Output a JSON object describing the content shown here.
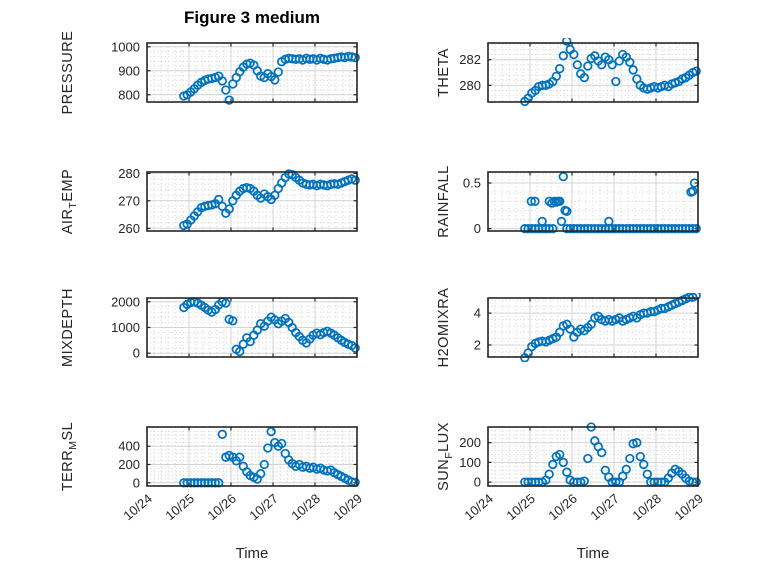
{
  "figure": {
    "title": "Figure 3 medium",
    "xlabel": "Time",
    "x_tick_labels": [
      "10/24",
      "10/25",
      "10/26",
      "10/27",
      "10/28",
      "10/29"
    ],
    "xlim_days": [
      0,
      5
    ],
    "colors": {
      "marker": "#0072BD",
      "axes": "#262626",
      "grid": "#d4d4d4",
      "minor_grid": "#d0d0d0",
      "text": "#262626",
      "title": "#000000"
    }
  },
  "chart_data": [
    {
      "id": "pressure",
      "type": "scatter",
      "row": 0,
      "col": 0,
      "ylabel_segments": [
        {
          "text": "PRESSURE",
          "sub": false
        }
      ],
      "yticks": [
        800,
        900,
        1000
      ],
      "ylim": [
        770,
        1016
      ],
      "t": [
        0.875,
        0.958,
        1.042,
        1.125,
        1.208,
        1.292,
        1.375,
        1.458,
        1.542,
        1.625,
        1.708,
        1.792,
        1.875,
        1.958,
        2.042,
        2.125,
        2.208,
        2.292,
        2.375,
        2.458,
        2.542,
        2.625,
        2.708,
        2.792,
        2.875,
        2.958,
        3.042,
        3.125,
        3.208,
        3.292,
        3.375,
        3.458,
        3.542,
        3.625,
        3.708,
        3.792,
        3.875,
        3.958,
        4.042,
        4.125,
        4.208,
        4.292,
        4.375,
        4.458,
        4.542,
        4.625,
        4.708,
        4.792,
        4.875,
        4.958
      ],
      "y": [
        795,
        800,
        812,
        825,
        840,
        852,
        860,
        866,
        868,
        872,
        878,
        858,
        820,
        778,
        845,
        872,
        896,
        915,
        928,
        932,
        924,
        900,
        878,
        872,
        888,
        876,
        862,
        895,
        938,
        948,
        952,
        950,
        948,
        950,
        945,
        952,
        948,
        950,
        945,
        952,
        948,
        945,
        950,
        952,
        955,
        958,
        955,
        960,
        958,
        955
      ]
    },
    {
      "id": "theta",
      "type": "scatter",
      "row": 0,
      "col": 1,
      "ylabel_segments": [
        {
          "text": "THETA",
          "sub": false
        }
      ],
      "yticks": [
        280,
        282
      ],
      "ylim": [
        278.7,
        283.3
      ],
      "t": [
        0.875,
        0.958,
        1.042,
        1.125,
        1.208,
        1.292,
        1.375,
        1.458,
        1.542,
        1.625,
        1.708,
        1.792,
        1.875,
        1.958,
        2.042,
        2.125,
        2.208,
        2.292,
        2.375,
        2.458,
        2.542,
        2.625,
        2.708,
        2.792,
        2.875,
        2.958,
        3.042,
        3.125,
        3.208,
        3.292,
        3.375,
        3.458,
        3.542,
        3.625,
        3.708,
        3.792,
        3.875,
        3.958,
        4.042,
        4.125,
        4.208,
        4.292,
        4.375,
        4.458,
        4.542,
        4.625,
        4.708,
        4.792,
        4.875,
        4.958
      ],
      "y": [
        278.75,
        279.0,
        279.4,
        279.6,
        279.9,
        280.0,
        280.0,
        280.1,
        280.3,
        280.7,
        281.3,
        282.3,
        283.45,
        282.8,
        282.4,
        281.6,
        280.9,
        280.6,
        281.5,
        282.1,
        282.3,
        281.9,
        281.6,
        282.2,
        282.0,
        281.6,
        280.3,
        281.9,
        282.4,
        282.2,
        281.8,
        281.2,
        280.5,
        280.0,
        279.8,
        279.7,
        279.8,
        279.9,
        279.8,
        279.9,
        280.0,
        279.9,
        280.1,
        280.2,
        280.3,
        280.5,
        280.6,
        280.8,
        281.0,
        281.1
      ]
    },
    {
      "id": "air-temp",
      "type": "scatter",
      "row": 1,
      "col": 0,
      "ylabel_segments": [
        {
          "text": "AIR",
          "sub": false
        },
        {
          "text": "T",
          "sub": true
        },
        {
          "text": "EMP",
          "sub": false
        }
      ],
      "yticks": [
        260,
        270,
        280
      ],
      "ylim": [
        259,
        280.5
      ],
      "t": [
        0.875,
        0.958,
        1.042,
        1.125,
        1.208,
        1.292,
        1.375,
        1.458,
        1.542,
        1.625,
        1.708,
        1.792,
        1.875,
        1.958,
        2.042,
        2.125,
        2.208,
        2.292,
        2.375,
        2.458,
        2.542,
        2.625,
        2.708,
        2.792,
        2.875,
        2.958,
        3.042,
        3.125,
        3.208,
        3.292,
        3.375,
        3.458,
        3.542,
        3.625,
        3.708,
        3.792,
        3.875,
        3.958,
        4.042,
        4.125,
        4.208,
        4.292,
        4.375,
        4.458,
        4.542,
        4.625,
        4.708,
        4.792,
        4.875,
        4.958
      ],
      "y": [
        261.0,
        261.5,
        263.0,
        264.5,
        266.0,
        267.5,
        268.0,
        268.3,
        268.5,
        269.0,
        270.5,
        268.0,
        265.5,
        267.0,
        270.0,
        272.0,
        273.5,
        274.5,
        274.8,
        274.5,
        273.5,
        272.0,
        271.0,
        272.5,
        271.5,
        270.5,
        272.0,
        274.5,
        276.5,
        278.5,
        279.8,
        279.5,
        278.5,
        277.5,
        276.5,
        276.0,
        275.8,
        276.0,
        275.5,
        276.0,
        275.8,
        275.5,
        276.0,
        276.2,
        276.0,
        276.5,
        277.0,
        277.5,
        278.0,
        277.5
      ]
    },
    {
      "id": "rainfall",
      "type": "scatter",
      "row": 1,
      "col": 1,
      "ylabel_segments": [
        {
          "text": "RAINFALL",
          "sub": false
        }
      ],
      "yticks": [
        0,
        0.5
      ],
      "ylim": [
        -0.025,
        0.62
      ],
      "t": [
        0.875,
        0.958,
        1.042,
        1.125,
        1.208,
        1.292,
        1.375,
        1.458,
        1.542,
        1.03,
        1.12,
        1.29,
        1.46,
        1.521,
        1.583,
        1.625,
        1.667,
        1.708,
        1.75,
        1.792,
        1.833,
        1.875,
        2.875,
        4.833,
        4.875,
        4.917,
        1.875,
        1.958,
        2.042,
        2.125,
        2.208,
        2.292,
        2.375,
        2.458,
        2.542,
        2.625,
        2.708,
        2.792,
        2.875,
        2.958,
        3.042,
        3.125,
        3.208,
        3.292,
        3.375,
        3.458,
        3.542,
        3.625,
        3.708,
        3.792,
        3.875,
        3.958,
        4.042,
        4.125,
        4.208,
        4.292,
        4.375,
        4.458,
        4.542,
        4.625,
        4.708,
        4.792,
        4.875,
        4.958
      ],
      "y": [
        0,
        0,
        0,
        0,
        0,
        0,
        0,
        0,
        0,
        0.3,
        0.3,
        0.08,
        0.3,
        0.28,
        0.3,
        0.29,
        0.3,
        0.3,
        0.08,
        0.57,
        0.2,
        0.19,
        0.08,
        0.4,
        0.41,
        0.5,
        0,
        0,
        0,
        0,
        0,
        0,
        0,
        0,
        0,
        0,
        0,
        0,
        0,
        0,
        0,
        0,
        0,
        0,
        0,
        0,
        0,
        0,
        0,
        0,
        0,
        0,
        0,
        0,
        0,
        0,
        0,
        0,
        0,
        0,
        0,
        0,
        0,
        0
      ]
    },
    {
      "id": "mixdepth",
      "type": "scatter",
      "row": 2,
      "col": 0,
      "ylabel_segments": [
        {
          "text": "MIXDEPTH",
          "sub": false
        }
      ],
      "yticks": [
        0,
        1000,
        2000
      ],
      "ylim": [
        -150,
        2150
      ],
      "t": [
        0.875,
        0.958,
        1.042,
        1.125,
        1.208,
        1.292,
        1.375,
        1.458,
        1.542,
        1.625,
        1.708,
        1.792,
        1.875,
        1.958,
        2.042,
        2.125,
        2.208,
        2.292,
        2.375,
        2.458,
        2.542,
        2.625,
        2.708,
        2.792,
        2.875,
        2.958,
        3.042,
        3.125,
        3.208,
        3.292,
        3.375,
        3.458,
        3.542,
        3.625,
        3.708,
        3.792,
        3.875,
        3.958,
        4.042,
        4.125,
        4.208,
        4.292,
        4.375,
        4.458,
        4.542,
        4.625,
        4.708,
        4.792,
        4.875,
        4.958
      ],
      "y": [
        1780,
        1900,
        1980,
        2000,
        1950,
        1870,
        1780,
        1680,
        1600,
        1700,
        1880,
        2000,
        1950,
        1320,
        1260,
        150,
        60,
        350,
        600,
        450,
        700,
        900,
        1150,
        1050,
        1250,
        1400,
        1300,
        1150,
        1250,
        1350,
        1200,
        1000,
        800,
        650,
        500,
        400,
        550,
        700,
        780,
        720,
        800,
        850,
        780,
        700,
        600,
        500,
        420,
        350,
        300,
        200
      ]
    },
    {
      "id": "h2omixra",
      "type": "scatter",
      "row": 2,
      "col": 1,
      "ylabel_segments": [
        {
          "text": "H2OMIXRA",
          "sub": false
        }
      ],
      "yticks": [
        2,
        4
      ],
      "ylim": [
        1.25,
        4.95
      ],
      "t": [
        0.875,
        0.958,
        1.042,
        1.125,
        1.208,
        1.292,
        1.375,
        1.458,
        1.542,
        1.625,
        1.708,
        1.792,
        1.875,
        1.958,
        2.042,
        2.125,
        2.208,
        2.292,
        2.375,
        2.458,
        2.542,
        2.625,
        2.708,
        2.792,
        2.875,
        2.958,
        3.042,
        3.125,
        3.208,
        3.292,
        3.375,
        3.458,
        3.542,
        3.625,
        3.708,
        3.792,
        3.875,
        3.958,
        4.042,
        4.125,
        4.208,
        4.292,
        4.375,
        4.458,
        4.542,
        4.625,
        4.708,
        4.792,
        4.875,
        4.958
      ],
      "y": [
        1.2,
        1.5,
        1.9,
        2.1,
        2.2,
        2.25,
        2.2,
        2.3,
        2.4,
        2.5,
        2.8,
        3.2,
        3.3,
        3.0,
        2.5,
        2.8,
        3.0,
        2.9,
        3.1,
        3.3,
        3.7,
        3.8,
        3.6,
        3.5,
        3.6,
        3.5,
        3.6,
        3.7,
        3.5,
        3.6,
        3.7,
        3.8,
        3.7,
        3.9,
        4.0,
        4.0,
        4.1,
        4.1,
        4.2,
        4.3,
        4.3,
        4.4,
        4.5,
        4.6,
        4.7,
        4.8,
        4.9,
        5.0,
        5.0,
        5.1
      ]
    },
    {
      "id": "terr-msl",
      "type": "scatter",
      "row": 3,
      "col": 0,
      "ylabel_segments": [
        {
          "text": "TERR",
          "sub": false
        },
        {
          "text": "M",
          "sub": true
        },
        {
          "text": "SL",
          "sub": false
        }
      ],
      "yticks": [
        0,
        200,
        400
      ],
      "ylim": [
        -35,
        610
      ],
      "t": [
        0.875,
        0.958,
        1.042,
        1.125,
        1.208,
        1.292,
        1.375,
        1.458,
        1.542,
        1.625,
        1.708,
        1.792,
        1.875,
        1.958,
        2.042,
        2.125,
        2.208,
        2.292,
        2.375,
        2.458,
        2.542,
        2.625,
        2.708,
        2.792,
        2.875,
        2.958,
        3.042,
        3.125,
        3.208,
        3.292,
        3.375,
        3.458,
        3.542,
        3.625,
        3.708,
        3.792,
        3.875,
        3.958,
        4.042,
        4.125,
        4.208,
        4.292,
        4.375,
        4.458,
        4.542,
        4.625,
        4.708,
        4.792,
        4.875,
        4.958
      ],
      "y": [
        0,
        0,
        0,
        0,
        0,
        0,
        0,
        0,
        0,
        0,
        0,
        530,
        280,
        300,
        280,
        240,
        280,
        180,
        120,
        80,
        60,
        40,
        100,
        200,
        380,
        560,
        440,
        400,
        430,
        320,
        250,
        210,
        180,
        200,
        170,
        180,
        160,
        170,
        150,
        160,
        140,
        130,
        140,
        110,
        90,
        70,
        50,
        30,
        10,
        5
      ]
    },
    {
      "id": "sun-flux",
      "type": "scatter",
      "row": 3,
      "col": 1,
      "ylabel_segments": [
        {
          "text": "SUN",
          "sub": false
        },
        {
          "text": "F",
          "sub": true
        },
        {
          "text": "LUX",
          "sub": false
        }
      ],
      "yticks": [
        0,
        100,
        200
      ],
      "ylim": [
        -20,
        280
      ],
      "t": [
        0.875,
        0.958,
        1.042,
        1.125,
        1.208,
        1.292,
        1.375,
        1.458,
        1.542,
        1.625,
        1.708,
        1.792,
        1.875,
        1.958,
        2.042,
        2.125,
        2.208,
        2.292,
        2.375,
        2.458,
        2.542,
        2.625,
        2.708,
        2.792,
        2.875,
        2.958,
        3.042,
        3.125,
        3.208,
        3.292,
        3.375,
        3.458,
        3.542,
        3.625,
        3.708,
        3.792,
        3.875,
        3.958,
        4.042,
        4.125,
        4.208,
        4.292,
        4.375,
        4.458,
        4.542,
        4.625,
        4.708,
        4.792,
        4.875,
        4.958
      ],
      "y": [
        0,
        0,
        0,
        0,
        0,
        0,
        10,
        40,
        90,
        130,
        140,
        100,
        50,
        10,
        0,
        0,
        0,
        5,
        120,
        280,
        210,
        180,
        150,
        60,
        25,
        0,
        0,
        0,
        30,
        65,
        120,
        195,
        200,
        130,
        90,
        40,
        0,
        0,
        0,
        0,
        0,
        20,
        45,
        65,
        55,
        40,
        20,
        5,
        0,
        0
      ]
    }
  ]
}
